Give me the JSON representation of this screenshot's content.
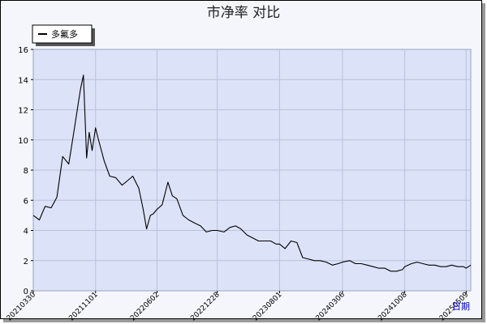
{
  "chart_data": {
    "type": "line",
    "title": "市净率  对比",
    "xlabel": "日期",
    "ylabel": "",
    "ylim": [
      0,
      16
    ],
    "yticks": [
      "0",
      "2",
      "4",
      "6",
      "8",
      "10",
      "12",
      "14",
      "16"
    ],
    "xticks": [
      "20210330",
      "20211101",
      "20220602",
      "20221228",
      "20230801",
      "20240306",
      "20241008",
      "20250509"
    ],
    "grid": true,
    "legend_position": "top-left",
    "colors": {
      "plot_bg": "#dce3f8",
      "line": "#000000",
      "grid": "#b8c2dc"
    },
    "series": [
      {
        "name": "多氟多",
        "x": [
          "2021-03-30",
          "2021-04-20",
          "2021-05-10",
          "2021-05-31",
          "2021-06-20",
          "2021-07-10",
          "2021-07-31",
          "2021-08-20",
          "2021-09-05",
          "2021-09-10",
          "2021-09-20",
          "2021-10-01",
          "2021-10-10",
          "2021-10-20",
          "2021-11-01",
          "2021-11-10",
          "2021-12-01",
          "2021-12-20",
          "2022-01-10",
          "2022-02-01",
          "2022-02-20",
          "2022-03-10",
          "2022-03-31",
          "2022-04-15",
          "2022-04-27",
          "2022-05-10",
          "2022-05-20",
          "2022-06-02",
          "2022-06-20",
          "2022-07-10",
          "2022-07-25",
          "2022-08-10",
          "2022-08-31",
          "2022-09-20",
          "2022-10-10",
          "2022-10-31",
          "2022-11-20",
          "2022-12-10",
          "2022-12-28",
          "2023-01-20",
          "2023-02-10",
          "2023-03-01",
          "2023-03-20",
          "2023-04-10",
          "2023-04-30",
          "2023-05-20",
          "2023-06-10",
          "2023-07-01",
          "2023-07-20",
          "2023-08-01",
          "2023-08-20",
          "2023-09-10",
          "2023-09-30",
          "2023-10-20",
          "2023-11-10",
          "2023-11-30",
          "2023-12-20",
          "2024-01-10",
          "2024-01-31",
          "2024-02-20",
          "2024-03-06",
          "2024-03-31",
          "2024-04-20",
          "2024-05-10",
          "2024-05-31",
          "2024-06-20",
          "2024-07-10",
          "2024-07-31",
          "2024-08-20",
          "2024-09-10",
          "2024-09-30",
          "2024-10-08",
          "2024-10-31",
          "2024-11-20",
          "2024-12-10",
          "2024-12-31",
          "2025-01-20",
          "2025-02-10",
          "2025-03-01",
          "2025-03-20",
          "2025-04-10",
          "2025-04-30",
          "2025-05-09",
          "2025-05-25"
        ],
        "values": [
          5.0,
          4.7,
          5.6,
          5.5,
          6.2,
          8.9,
          8.4,
          10.8,
          12.8,
          13.4,
          14.3,
          8.8,
          10.5,
          9.3,
          10.8,
          10.1,
          8.6,
          7.6,
          7.5,
          7.0,
          7.3,
          7.6,
          6.8,
          5.4,
          4.1,
          5.0,
          5.1,
          5.4,
          5.7,
          7.2,
          6.3,
          6.1,
          5.0,
          4.7,
          4.5,
          4.3,
          3.9,
          4.0,
          4.0,
          3.9,
          4.2,
          4.3,
          4.1,
          3.7,
          3.5,
          3.3,
          3.3,
          3.3,
          3.1,
          3.1,
          2.8,
          3.3,
          3.2,
          2.2,
          2.1,
          2.0,
          2.0,
          1.9,
          1.7,
          1.8,
          1.9,
          2.0,
          1.8,
          1.8,
          1.7,
          1.6,
          1.5,
          1.5,
          1.3,
          1.3,
          1.4,
          1.6,
          1.8,
          1.9,
          1.8,
          1.7,
          1.7,
          1.6,
          1.6,
          1.7,
          1.6,
          1.6,
          1.5,
          1.7
        ]
      }
    ]
  }
}
